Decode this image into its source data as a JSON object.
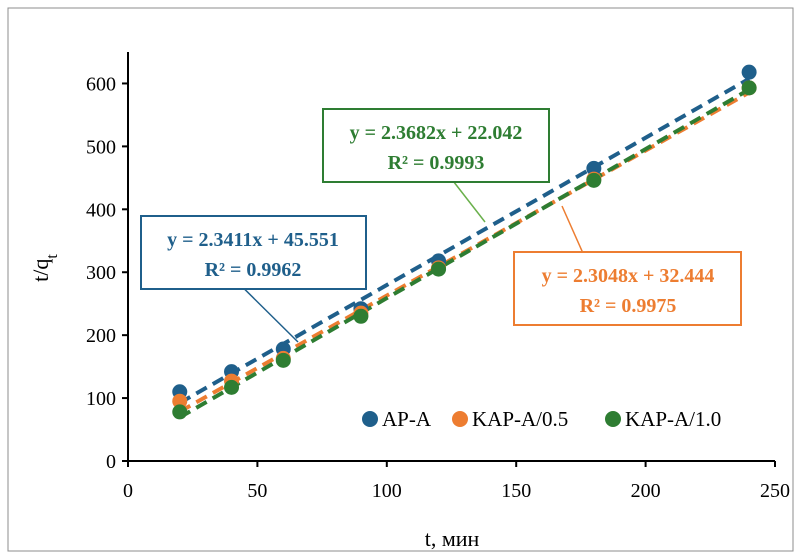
{
  "chart_data": {
    "type": "scatter",
    "xlabel": "t, мин",
    "ylabel_main": "t/q",
    "ylabel_sub": "t",
    "xlim": [
      0,
      250
    ],
    "ylim": [
      0,
      650
    ],
    "x_ticks": [
      0,
      50,
      100,
      150,
      200,
      250
    ],
    "y_ticks": [
      0,
      100,
      200,
      300,
      400,
      500,
      600
    ],
    "grid": false,
    "legend_position": "bottom-right",
    "series": [
      {
        "name": "AP-A",
        "color": "#1f5f8b",
        "x": [
          20,
          40,
          60,
          90,
          120,
          180,
          240
        ],
        "y": [
          110,
          142,
          178,
          242,
          318,
          465,
          618
        ],
        "trendline": {
          "slope": 2.3411,
          "intercept": 45.551,
          "x_range": [
            20,
            240
          ]
        },
        "equation": "y = 2.3411x + 45.551",
        "r2": "R² = 0.9962"
      },
      {
        "name": "KAP-A/0.5",
        "color": "#ed7d31",
        "x": [
          20,
          40,
          60,
          90,
          120,
          180,
          240
        ],
        "y": [
          95,
          127,
          163,
          235,
          307,
          448,
          593
        ],
        "trendline": {
          "slope": 2.3048,
          "intercept": 32.444,
          "x_range": [
            20,
            240
          ]
        },
        "equation": "y = 2.3048x + 32.444",
        "r2": "R² = 0.9975"
      },
      {
        "name": "KAP-A/1.0",
        "color": "#2e7d32",
        "x": [
          20,
          40,
          60,
          90,
          120,
          180,
          240
        ],
        "y": [
          78,
          117,
          160,
          230,
          305,
          446,
          593
        ],
        "trendline": {
          "slope": 2.3682,
          "intercept": 22.042,
          "x_range": [
            20,
            240
          ]
        },
        "equation": "y = 2.3682x + 22.042",
        "r2": "R² = 0.9993"
      }
    ]
  }
}
